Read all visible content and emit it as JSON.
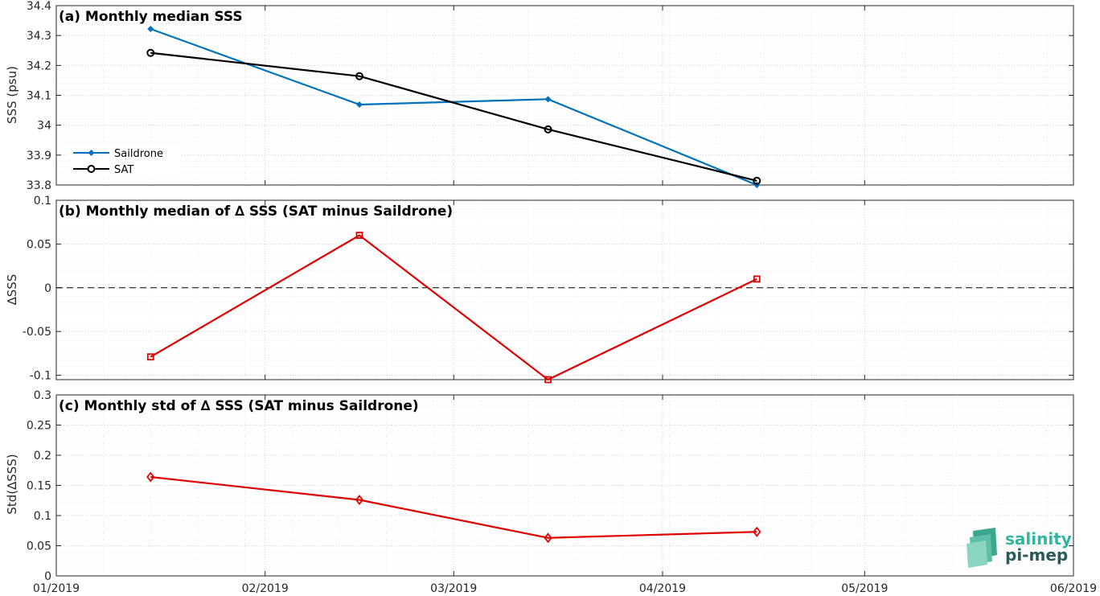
{
  "chart_data": [
    {
      "type": "line",
      "title": "(a) Monthly median SSS",
      "xlabel": "",
      "ylabel": "SSS (psu)",
      "x_ticks": [
        "01/2019",
        "02/2019",
        "03/2019",
        "04/2019",
        "05/2019",
        "06/2019"
      ],
      "ylim": [
        33.8,
        34.4
      ],
      "y_ticks": [
        "33.8",
        "33.9",
        "34",
        "34.1",
        "34.2",
        "34.3",
        "34.4"
      ],
      "x": [
        "2019-01-15",
        "2019-02-15",
        "2019-03-15",
        "2019-04-15"
      ],
      "series": [
        {
          "name": "Saildrone",
          "color": "#0072bd",
          "marker": "diamond-filled",
          "values": [
            34.322,
            34.069,
            34.087,
            33.8
          ]
        },
        {
          "name": "SAT",
          "color": "#000000",
          "marker": "circle-open",
          "values": [
            34.242,
            34.164,
            33.986,
            33.814
          ]
        }
      ],
      "legend": "lower-left",
      "grid": true
    },
    {
      "type": "line",
      "title": "(b) Monthly median of ∆ SSS (SAT minus Saildrone)",
      "xlabel": "",
      "ylabel": "∆SSS",
      "ylim": [
        -0.105,
        0.1
      ],
      "y_ticks": [
        "-0.1",
        "-0.05",
        "0",
        "0.05",
        "0.1"
      ],
      "x": [
        "2019-01-15",
        "2019-02-15",
        "2019-03-15",
        "2019-04-15"
      ],
      "series": [
        {
          "color": "#e00000",
          "marker": "square-open",
          "values": [
            -0.079,
            0.06,
            -0.105,
            0.01
          ]
        }
      ],
      "reference_line": {
        "y": 0,
        "style": "dashed",
        "color": "#000000"
      },
      "grid": true
    },
    {
      "type": "line",
      "title": "(c) Monthly std of ∆ SSS (SAT minus Saildrone)",
      "xlabel": "",
      "ylabel": "Std(∆SSS)",
      "ylim": [
        0,
        0.3
      ],
      "y_ticks": [
        "0",
        "0.05",
        "0.1",
        "0.15",
        "0.2",
        "0.25",
        "0.3"
      ],
      "x_ticks": [
        "01/2019",
        "02/2019",
        "03/2019",
        "04/2019",
        "05/2019",
        "06/2019"
      ],
      "x": [
        "2019-01-15",
        "2019-02-15",
        "2019-03-15",
        "2019-04-15"
      ],
      "series": [
        {
          "color": "#e00000",
          "marker": "diamond-open",
          "values": [
            0.164,
            0.126,
            0.063,
            0.073
          ]
        }
      ],
      "grid": true
    }
  ],
  "logo": {
    "line1": "salinity",
    "line2": "pi-mep",
    "color1": "#2fb5a0",
    "color2": "#2a5a5a"
  }
}
